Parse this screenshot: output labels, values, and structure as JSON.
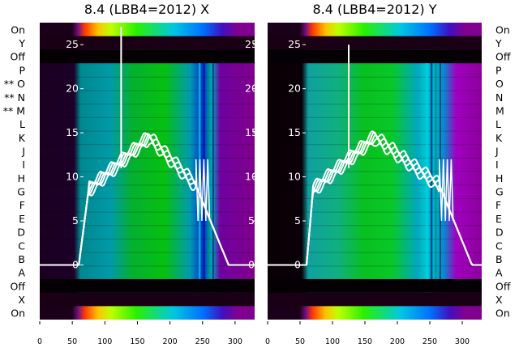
{
  "chart_data": [
    {
      "type": "heatmap+line",
      "title": "8.4 (LBB4=2012) X",
      "left_row_labels": [
        "On",
        "Y",
        "Off",
        "P",
        "** O",
        "** N",
        "** M",
        "L",
        "K",
        "J",
        "I",
        "H",
        "G",
        "F",
        "E",
        "D",
        "C",
        "B",
        "A",
        "Off",
        "X",
        "On"
      ],
      "xlim": [
        0,
        330
      ],
      "x_ticks": [
        0,
        50,
        100,
        150,
        200,
        250,
        300
      ],
      "ylim": [
        -6.2,
        27.5
      ],
      "y_ticks": [
        0,
        5,
        10,
        15,
        20,
        25
      ],
      "series_summary": {
        "rise_start_x": 60,
        "plateau_start_x": 75,
        "peak_x": 168,
        "peak_y": 14.5,
        "fall_start_x": 240,
        "tail_end_x": 330,
        "tail_end_y": 0,
        "spike_x": 125,
        "spike_y": 27
      }
    },
    {
      "type": "heatmap+line",
      "title": "8.4 (LBB4=2012) Y",
      "right_row_labels": [
        "On",
        "Y",
        "Off",
        "P",
        "O",
        "N",
        "M",
        "L",
        "K",
        "J",
        "I",
        "H",
        "G",
        "F",
        "E",
        "D",
        "C",
        "B",
        "A",
        "Off",
        "X",
        "On"
      ],
      "xlim": [
        0,
        330
      ],
      "x_ticks": [
        0,
        50,
        100,
        150,
        200,
        250,
        300
      ],
      "ylim": [
        -6.2,
        27.5
      ],
      "y_ticks": [
        0,
        5,
        10,
        15,
        20,
        25
      ],
      "series_summary": {
        "rise_start_x": 60,
        "plateau_start_x": 70,
        "peak_x": 165,
        "peak_y": 14.5,
        "fall_start_x": 265,
        "tail_end_x": 330,
        "tail_end_y": 0,
        "spike_x": 125,
        "spike_y": 25
      }
    }
  ]
}
